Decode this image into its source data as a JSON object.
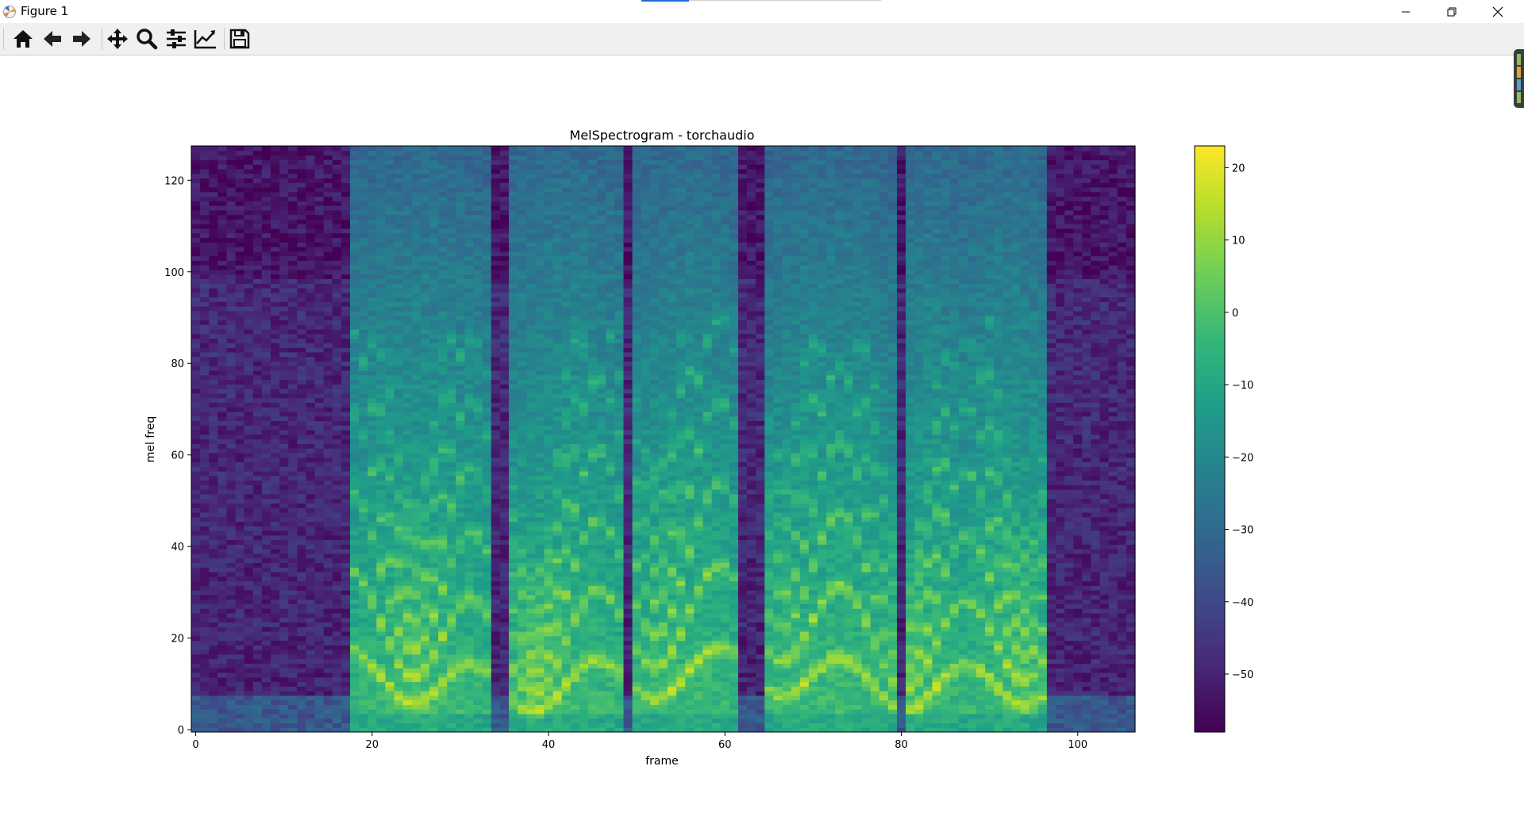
{
  "window": {
    "title": "Figure 1",
    "controls": [
      "minimize",
      "restore",
      "close"
    ]
  },
  "toolbar": {
    "buttons": [
      {
        "name": "home",
        "icon": "home-icon"
      },
      {
        "name": "back",
        "icon": "arrow-left-icon"
      },
      {
        "name": "forward",
        "icon": "arrow-right-icon"
      },
      {
        "name": "pan",
        "icon": "move-icon"
      },
      {
        "name": "zoom",
        "icon": "magnifier-icon"
      },
      {
        "name": "configure-subplots",
        "icon": "sliders-icon"
      },
      {
        "name": "edit-axis",
        "icon": "line-chart-icon"
      },
      {
        "name": "save",
        "icon": "floppy-disk-icon"
      }
    ]
  },
  "chart_data": {
    "type": "heatmap",
    "title": "MelSpectrogram - torchaudio",
    "xlabel": "frame",
    "ylabel": "mel freq",
    "xlim": [
      -0.5,
      106.5
    ],
    "ylim": [
      -0.5,
      127.5
    ],
    "frames": 107,
    "mel_bins": 128,
    "xticks": [
      0,
      20,
      40,
      60,
      80,
      100
    ],
    "yticks": [
      0,
      20,
      40,
      60,
      80,
      100,
      120
    ],
    "colormap": "viridis",
    "colorbar": {
      "vmin": -58,
      "vmax": 23,
      "ticks": [
        20,
        10,
        0,
        -10,
        -20,
        -30,
        -40,
        -50
      ]
    },
    "segments": [
      {
        "start": 0,
        "end": 16,
        "level": "silence"
      },
      {
        "start": 18,
        "end": 33,
        "level": "voiced",
        "f0_peak_frame": 25
      },
      {
        "start": 36,
        "end": 48,
        "level": "voiced"
      },
      {
        "start": 50,
        "end": 61,
        "level": "voiced"
      },
      {
        "start": 65,
        "end": 79,
        "level": "voiced"
      },
      {
        "start": 81,
        "end": 86,
        "level": "voiced"
      },
      {
        "start": 87,
        "end": 96,
        "level": "voiced"
      },
      {
        "start": 98,
        "end": 106,
        "level": "silence"
      }
    ]
  }
}
